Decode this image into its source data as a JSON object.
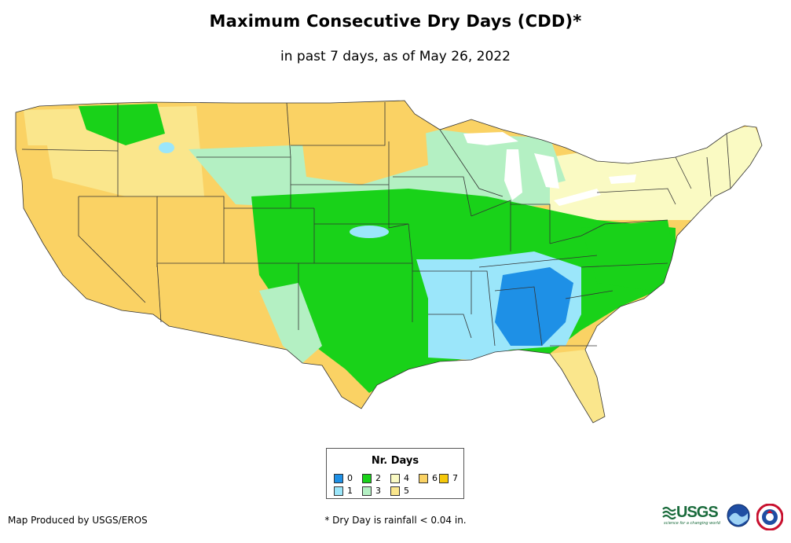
{
  "header": {
    "title": "Maximum Consecutive Dry Days (CDD)*",
    "subtitle": "in past 7 days, as of May 26, 2022"
  },
  "legend": {
    "title": "Nr. Days",
    "items": [
      {
        "label": "0",
        "color": "#1e90e6"
      },
      {
        "label": "1",
        "color": "#9be6fa"
      },
      {
        "label": "2",
        "color": "#19d219"
      },
      {
        "label": "3",
        "color": "#b4f0c3"
      },
      {
        "label": "4",
        "color": "#fafac3"
      },
      {
        "label": "5",
        "color": "#fae68c"
      },
      {
        "label": "6",
        "color": "#fad264"
      },
      {
        "label": "7",
        "color": "#f5c80a"
      }
    ]
  },
  "footer": {
    "credit": "Map Produced by USGS/EROS",
    "footnote": "* Dry Day is rainfall < 0.04 in."
  },
  "logos": {
    "usgs_text": "USGS",
    "usgs_tagline": "science for a changing world",
    "noaa": "noaa-logo",
    "nws": "nws-logo"
  }
}
